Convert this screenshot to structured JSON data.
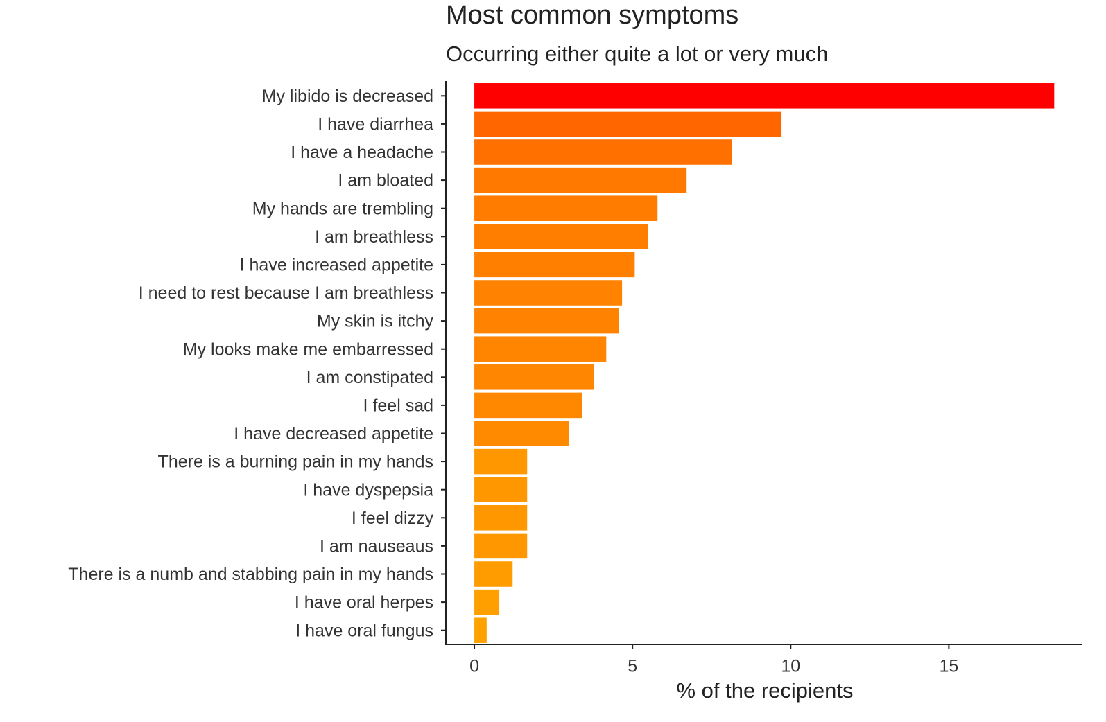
{
  "chart_data": {
    "type": "barh",
    "title": "Most common symptoms",
    "subtitle": "Occurring either quite a lot or very much",
    "x_label": "% of the recipients",
    "categories": [
      "My libido is decreased",
      "I have diarrhea",
      "I have a headache",
      "I am bloated",
      "My hands are trembling",
      "I am breathless",
      "I have increased appetite",
      "I need to rest because I am breathless",
      "My skin is itchy",
      "My looks make me embarressed",
      "I am constipated",
      "I feel sad",
      "I have decreased appetite",
      "There is a burning pain in my hands",
      "I have dyspepsia",
      "I feel dizzy",
      "I am nauseaus",
      "There is a numb and stabbing pain in my hands",
      "I have oral herpes",
      "I have oral fungus"
    ],
    "values": [
      18.33,
      9.71,
      8.14,
      6.71,
      5.79,
      5.48,
      5.07,
      4.67,
      4.56,
      4.17,
      3.79,
      3.4,
      2.98,
      1.67,
      1.67,
      1.67,
      1.67,
      1.21,
      0.79,
      0.39
    ],
    "colors": [
      "#ff0000",
      "#ff6600",
      "#ff7000",
      "#ff7800",
      "#ff7c00",
      "#ff7e00",
      "#ff8000",
      "#ff8200",
      "#ff8200",
      "#ff8400",
      "#ff8600",
      "#ff8800",
      "#ff8a00",
      "#ff9800",
      "#ff9800",
      "#ff9800",
      "#ff9800",
      "#ff9c00",
      "#ffa000",
      "#ffa200"
    ],
    "xlim": [
      -0.9,
      19.2
    ],
    "xticks": [
      0,
      5,
      10,
      15
    ]
  }
}
